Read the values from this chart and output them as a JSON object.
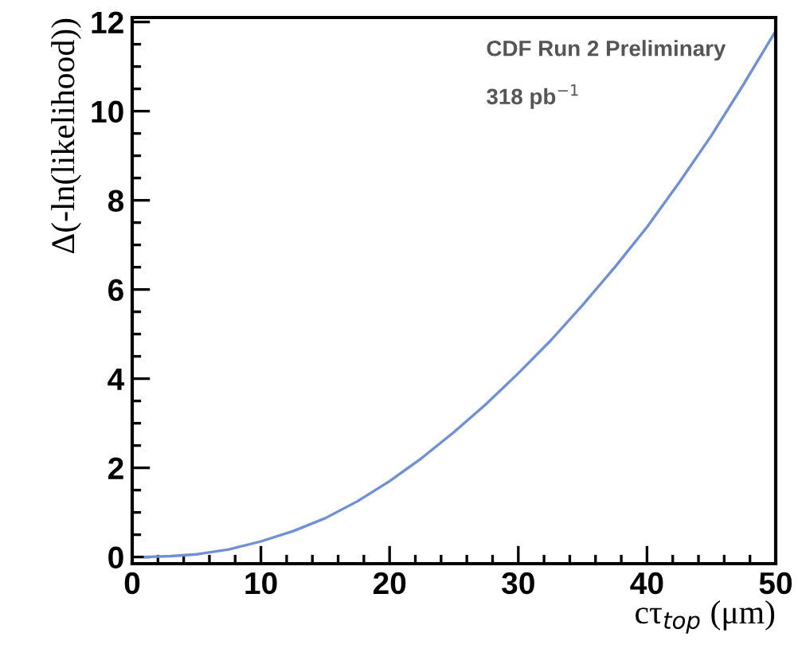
{
  "chart_data": {
    "type": "line",
    "xlabel": "cτ$_{top}$ (μm)",
    "ylabel": "Δ(-ln(likelihood))",
    "annotations": [
      "CDF Run 2 Preliminary",
      "318 pb$^{−1}$"
    ],
    "x": [
      1,
      3,
      5,
      7.5,
      10,
      12.5,
      15,
      17.5,
      20,
      22.5,
      25,
      27.5,
      30,
      32.5,
      35,
      37.5,
      40,
      42.5,
      45,
      47.5,
      50
    ],
    "series": [
      {
        "color": "#6f8fd6",
        "values": [
          0,
          0.02,
          0.06,
          0.17,
          0.35,
          0.58,
          0.87,
          1.25,
          1.7,
          2.22,
          2.8,
          3.43,
          4.12,
          4.85,
          5.65,
          6.5,
          7.4,
          8.4,
          9.45,
          10.6,
          11.8
        ]
      }
    ],
    "xlim": [
      0,
      50
    ],
    "ylim": [
      -0.15,
      12.1
    ],
    "xticks": [
      0,
      10,
      20,
      30,
      40,
      50
    ],
    "yticks": [
      0,
      2,
      4,
      6,
      8,
      10,
      12
    ],
    "grid": false,
    "legend": false,
    "marker": "none",
    "line_style": "solid"
  }
}
